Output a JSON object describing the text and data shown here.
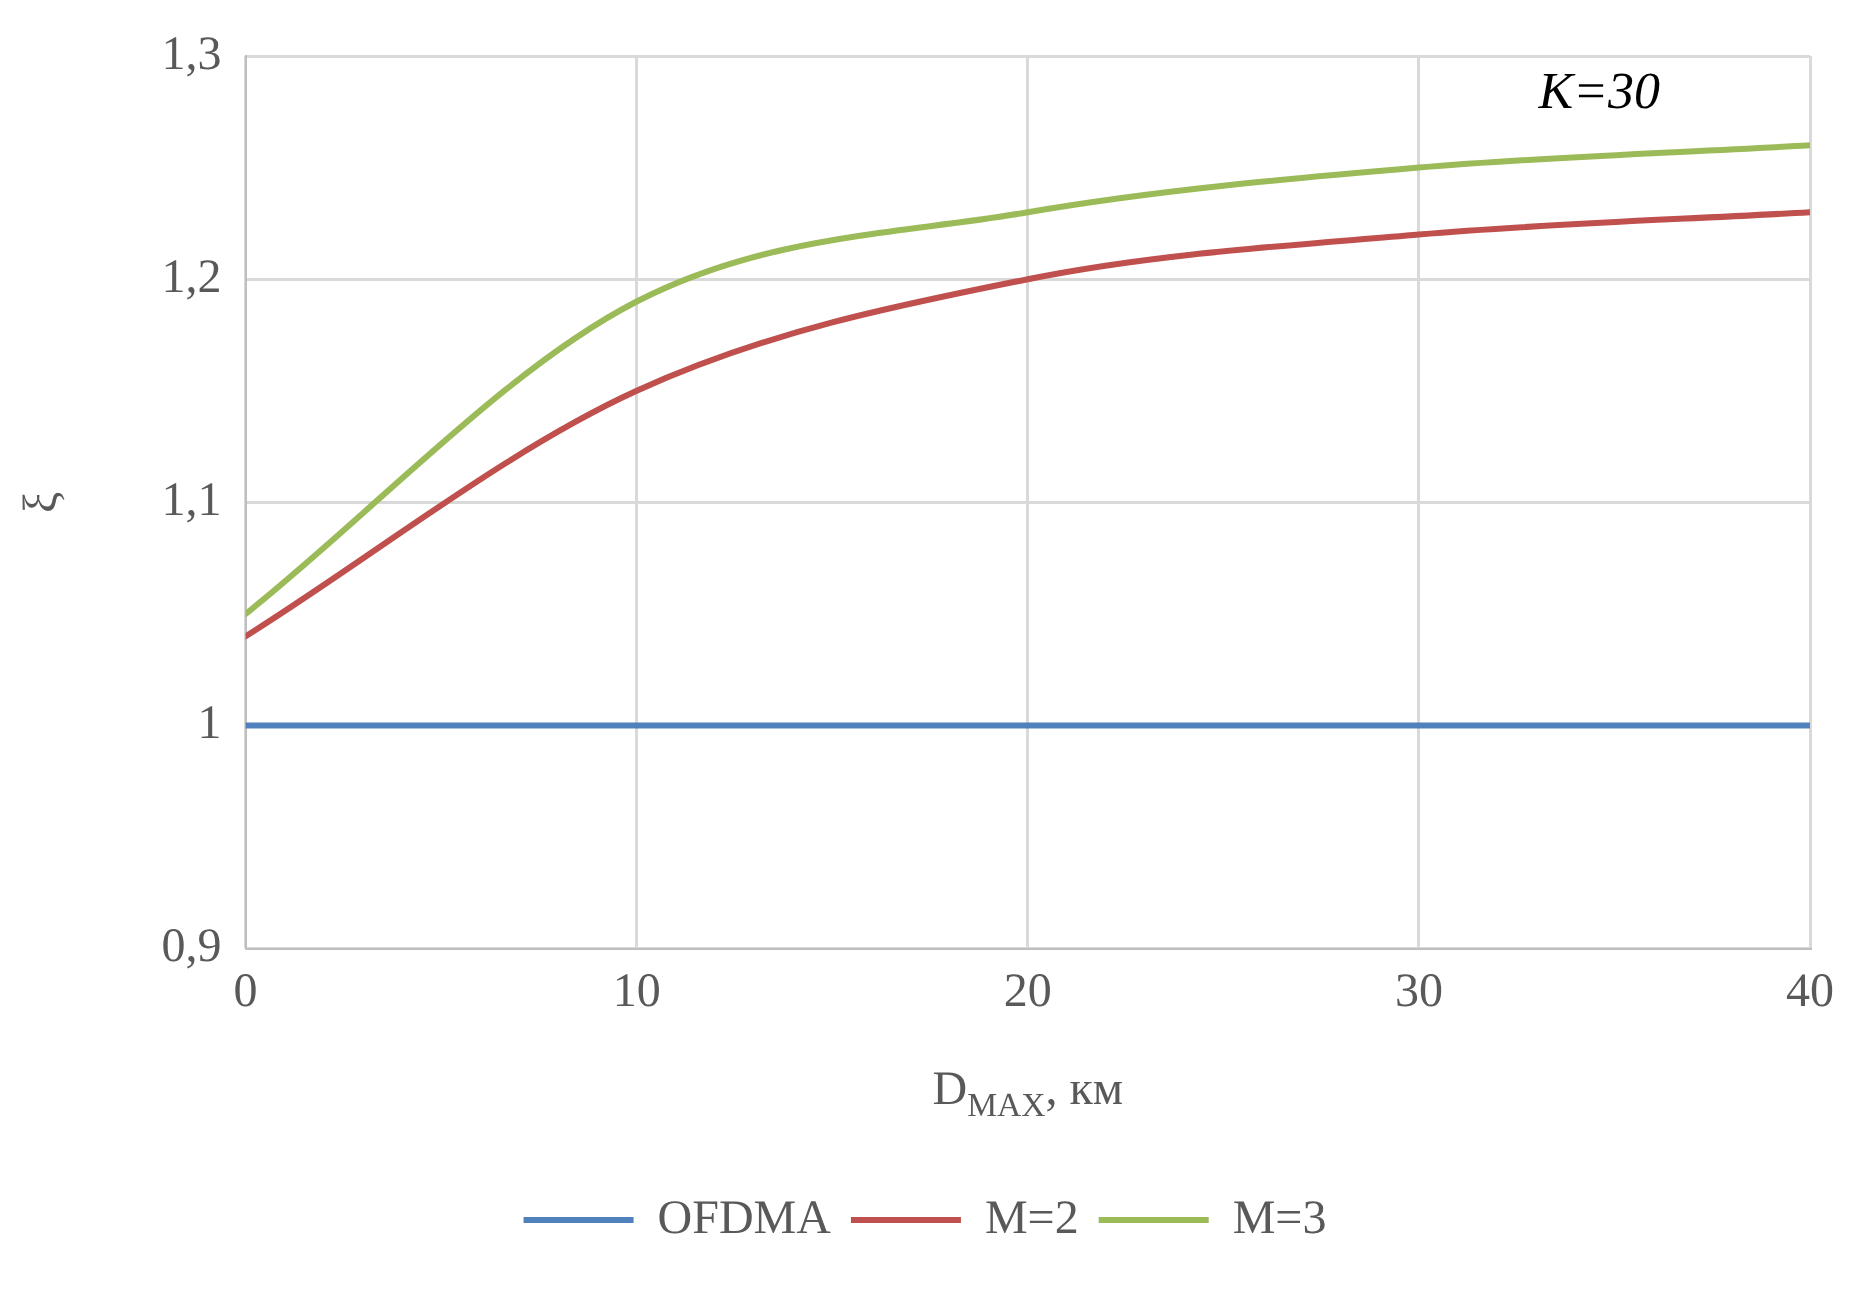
{
  "chart_data": {
    "type": "line",
    "xlabel": "D$_{MAX}$, км",
    "ylabel": "ξ",
    "annotations": [
      "К=30"
    ],
    "x": [
      0,
      10,
      20,
      30,
      40
    ],
    "series": [
      {
        "name": "OFDMA",
        "color": "#4f81bd",
        "values": [
          1,
          1,
          1,
          1,
          1
        ]
      },
      {
        "name": "M=2",
        "color": "#c0504d",
        "values": [
          1.04,
          1.15,
          1.2,
          1.22,
          1.23
        ]
      },
      {
        "name": "M=3",
        "color": "#9bbb59",
        "values": [
          1.05,
          1.19,
          1.23,
          1.25,
          1.26
        ]
      }
    ],
    "xlim": [
      0,
      40
    ],
    "xticks": [
      0,
      10,
      20,
      30,
      40
    ],
    "ylim": [
      0.9,
      1.3
    ],
    "yticks": [
      {
        "value": 0.9,
        "label": "0,9"
      },
      1,
      {
        "value": 1.1,
        "label": "1,1"
      },
      {
        "value": 1.2,
        "label": "1,2"
      },
      {
        "value": 1.3,
        "label": "1,3"
      }
    ],
    "grid": true,
    "legend": "bottom",
    "marker": "none",
    "line_style": "solid"
  }
}
